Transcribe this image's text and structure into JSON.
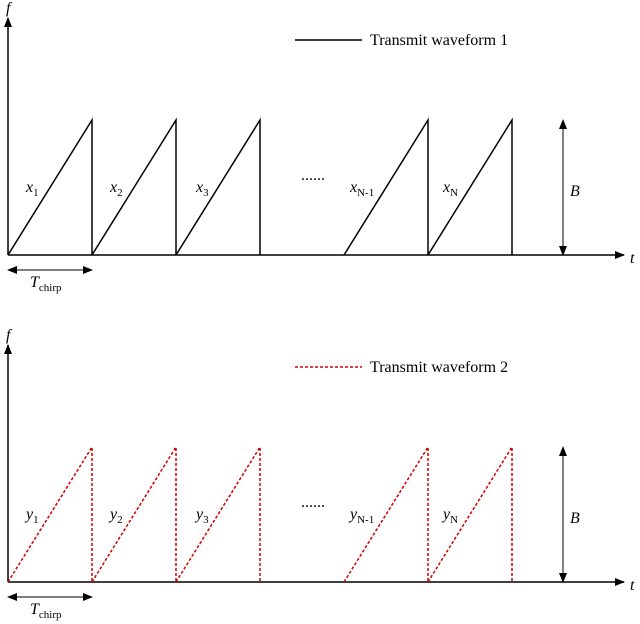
{
  "panels": [
    {
      "axis_y": "f",
      "axis_x": "t",
      "legend": "Transmit waveform 1",
      "chirps": [
        {
          "base": "x",
          "sub": "1"
        },
        {
          "base": "x",
          "sub": "2"
        },
        {
          "base": "x",
          "sub": "3"
        },
        {
          "base": "x",
          "sub": "N-1"
        },
        {
          "base": "x",
          "sub": "N"
        }
      ],
      "ellipsis": "......",
      "bandwidth": "B",
      "duration": {
        "base": "T",
        "sub": "chirp"
      }
    },
    {
      "axis_y": "f",
      "axis_x": "t",
      "legend": "Transmit waveform 2",
      "chirps": [
        {
          "base": "y",
          "sub": "1"
        },
        {
          "base": "y",
          "sub": "2"
        },
        {
          "base": "y",
          "sub": "3"
        },
        {
          "base": "y",
          "sub": "N-1"
        },
        {
          "base": "y",
          "sub": "N"
        }
      ],
      "ellipsis": "......",
      "bandwidth": "B",
      "duration": {
        "base": "T",
        "sub": "chirp"
      }
    }
  ]
}
